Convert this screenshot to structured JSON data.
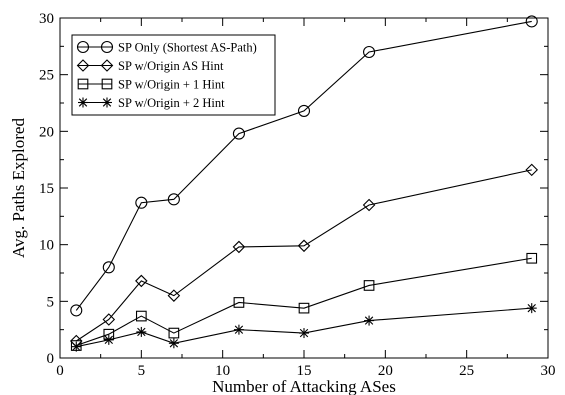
{
  "chart_data": {
    "type": "line",
    "xlabel": "Number of Attacking ASes",
    "ylabel": "Avg. Paths Explored",
    "xlim": [
      0,
      30
    ],
    "ylim": [
      0,
      30
    ],
    "xticks": [
      0,
      5,
      10,
      15,
      20,
      25,
      30
    ],
    "yticks": [
      0,
      5,
      10,
      15,
      20,
      25,
      30
    ],
    "grid": false,
    "legend_position": "top-left",
    "x": [
      1,
      3,
      5,
      7,
      11,
      15,
      19,
      29
    ],
    "series": [
      {
        "name": "SP Only (Shortest AS-Path)",
        "marker": "circle",
        "values": [
          4.2,
          8.0,
          13.7,
          14.0,
          19.8,
          21.8,
          27.0,
          29.7
        ]
      },
      {
        "name": "SP w/Origin AS Hint",
        "marker": "diamond",
        "values": [
          1.5,
          3.4,
          6.8,
          5.5,
          9.8,
          9.9,
          13.5,
          16.6
        ]
      },
      {
        "name": "SP w/Origin + 1 Hint",
        "marker": "square",
        "values": [
          1.1,
          2.1,
          3.7,
          2.2,
          4.9,
          4.4,
          6.4,
          8.8
        ]
      },
      {
        "name": "SP w/Origin + 2 Hint",
        "marker": "asterisk",
        "values": [
          1.0,
          1.6,
          2.3,
          1.3,
          2.5,
          2.2,
          3.3,
          4.4
        ]
      }
    ]
  }
}
